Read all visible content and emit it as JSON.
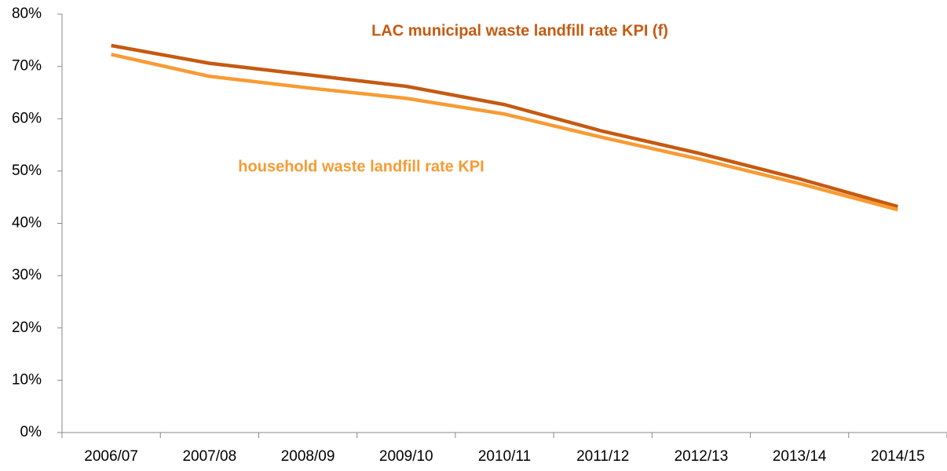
{
  "chart_data": {
    "type": "line",
    "categories": [
      "2006/07",
      "2007/08",
      "2008/09",
      "2009/10",
      "2010/11",
      "2011/12",
      "2012/13",
      "2013/14",
      "2014/15"
    ],
    "series": [
      {
        "name": "LAC municipal waste landfill rate KPI (f)",
        "color": "#c55a11",
        "values": [
          74.0,
          70.6,
          68.4,
          66.2,
          62.7,
          57.6,
          53.3,
          48.5,
          43.2
        ]
      },
      {
        "name": "household waste landfill rate KPI",
        "color": "#f79b34",
        "values": [
          72.3,
          68.1,
          65.9,
          63.9,
          60.9,
          56.4,
          52.2,
          47.6,
          42.6
        ]
      }
    ],
    "ylim": [
      0,
      80
    ],
    "yticks": [
      {
        "value": 0,
        "label": "0%"
      },
      {
        "value": 10,
        "label": "10%"
      },
      {
        "value": 20,
        "label": "20%"
      },
      {
        "value": 30,
        "label": "30%"
      },
      {
        "value": 40,
        "label": "40%"
      },
      {
        "value": 50,
        "label": "50%"
      },
      {
        "value": 60,
        "label": "60%"
      },
      {
        "value": 70,
        "label": "70%"
      },
      {
        "value": 80,
        "label": "80%"
      }
    ],
    "grid": false
  }
}
